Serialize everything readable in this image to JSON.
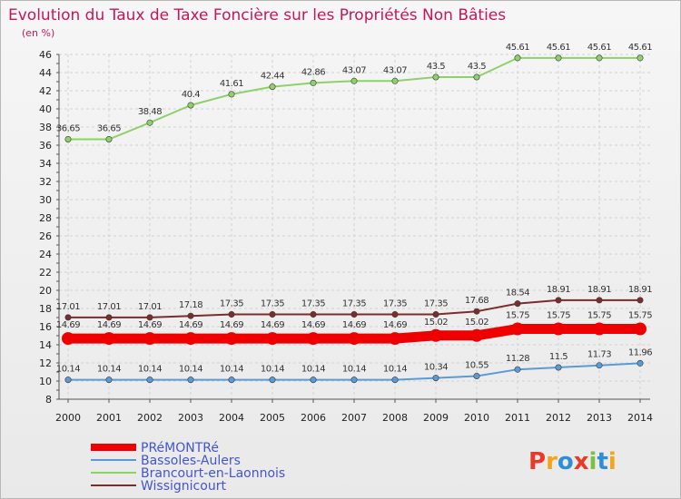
{
  "chart_data": {
    "type": "line",
    "title": "Evolution du Taux de Taxe Foncière sur les Propriétés Non Bâties",
    "subtitle": "(en %)",
    "categories": [
      "2000",
      "2001",
      "2002",
      "2003",
      "2004",
      "2005",
      "2006",
      "2007",
      "2008",
      "2009",
      "2010",
      "2011",
      "2012",
      "2013",
      "2014"
    ],
    "ylim": [
      8,
      46
    ],
    "yticks": [
      8,
      10,
      12,
      14,
      16,
      18,
      20,
      22,
      24,
      26,
      28,
      30,
      32,
      34,
      36,
      38,
      40,
      42,
      44,
      46
    ],
    "grid": true,
    "legend_position": "bottom-left",
    "series": [
      {
        "name": "Brancourt-en-Laonnois",
        "color": "#8ed16a",
        "values": [
          36.65,
          36.65,
          38.48,
          40.4,
          41.61,
          42.44,
          42.86,
          43.07,
          43.07,
          43.5,
          43.5,
          45.61,
          45.61,
          45.61,
          45.61
        ],
        "labels": [
          "36.65",
          "36.65",
          "38.48",
          "40.4",
          "41.61",
          "42.44",
          "42.86",
          "43.07",
          "43.07",
          "43.5",
          "43.5",
          "45.61",
          "45.61",
          "45.61",
          "45.61"
        ]
      },
      {
        "name": "Wissignicourt",
        "color": "#7b2c2c",
        "values": [
          17.01,
          17.01,
          17.01,
          17.18,
          17.35,
          17.35,
          17.35,
          17.35,
          17.35,
          17.35,
          17.68,
          18.54,
          18.91,
          18.91,
          18.91
        ],
        "labels": [
          "17.01",
          "17.01",
          "17.01",
          "17.18",
          "17.35",
          "17.35",
          "17.35",
          "17.35",
          "17.35",
          "17.35",
          "17.68",
          "18.54",
          "18.91",
          "18.91",
          "18.91"
        ]
      },
      {
        "name": "PRéMONTRé",
        "color": "#ee0000",
        "values": [
          14.69,
          14.69,
          14.69,
          14.69,
          14.69,
          14.69,
          14.69,
          14.69,
          14.69,
          15.02,
          15.02,
          15.75,
          15.75,
          15.75,
          15.75
        ],
        "labels": [
          "14.69",
          "14.69",
          "14.69",
          "14.69",
          "14.69",
          "14.69",
          "14.69",
          "14.69",
          "14.69",
          "15.02",
          "15.02",
          "15.75",
          "15.75",
          "15.75",
          "15.75"
        ]
      },
      {
        "name": "Bassoles-Aulers",
        "color": "#5b9bd5",
        "values": [
          10.14,
          10.14,
          10.14,
          10.14,
          10.14,
          10.14,
          10.14,
          10.14,
          10.14,
          10.34,
          10.55,
          11.28,
          11.5,
          11.73,
          11.96
        ],
        "labels": [
          "10.14",
          "10.14",
          "10.14",
          "10.14",
          "10.14",
          "10.14",
          "10.14",
          "10.14",
          "10.14",
          "10.34",
          "10.55",
          "11.28",
          "11.5",
          "11.73",
          "11.96"
        ]
      }
    ],
    "legend": [
      {
        "name": "PRéMONTRé",
        "color": "#ee0000"
      },
      {
        "name": "Bassoles-Aulers",
        "color": "#5b9bd5"
      },
      {
        "name": "Brancourt-en-Laonnois",
        "color": "#8ed16a"
      },
      {
        "name": "Wissignicourt",
        "color": "#7b2c2c"
      }
    ]
  },
  "logo": {
    "letters": [
      "P",
      "r",
      "o",
      "x",
      "i",
      "t",
      "i"
    ],
    "colors": [
      "#e8392b",
      "#f5a31a",
      "#2f8fd6",
      "#e8392b",
      "#7ac143",
      "#2f8fd6",
      "#f5a31a"
    ]
  }
}
